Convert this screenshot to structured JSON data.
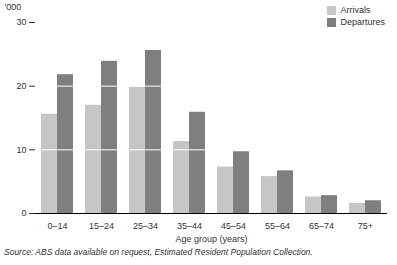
{
  "chart_data": {
    "type": "bar",
    "y_label": "'000",
    "x_label": "Age group (years)",
    "source": "Source: ABS data available on request, Estimated Resident Population Collection.",
    "categories": [
      "0–14",
      "15–24",
      "25–34",
      "35–44",
      "45–54",
      "55–64",
      "65–74",
      "75+"
    ],
    "series": [
      {
        "name": "Arrivals",
        "color": "#c6c6c6",
        "values": [
          15.6,
          17.0,
          19.8,
          11.3,
          7.3,
          5.8,
          2.6,
          1.6
        ]
      },
      {
        "name": "Departures",
        "color": "#7f7f7f",
        "values": [
          21.8,
          23.9,
          25.6,
          15.9,
          9.7,
          6.7,
          2.8,
          2.0
        ]
      }
    ],
    "ylim": [
      0,
      30
    ],
    "yticks": [
      0,
      10,
      20,
      30
    ],
    "grid": true,
    "legend": "top-right"
  }
}
